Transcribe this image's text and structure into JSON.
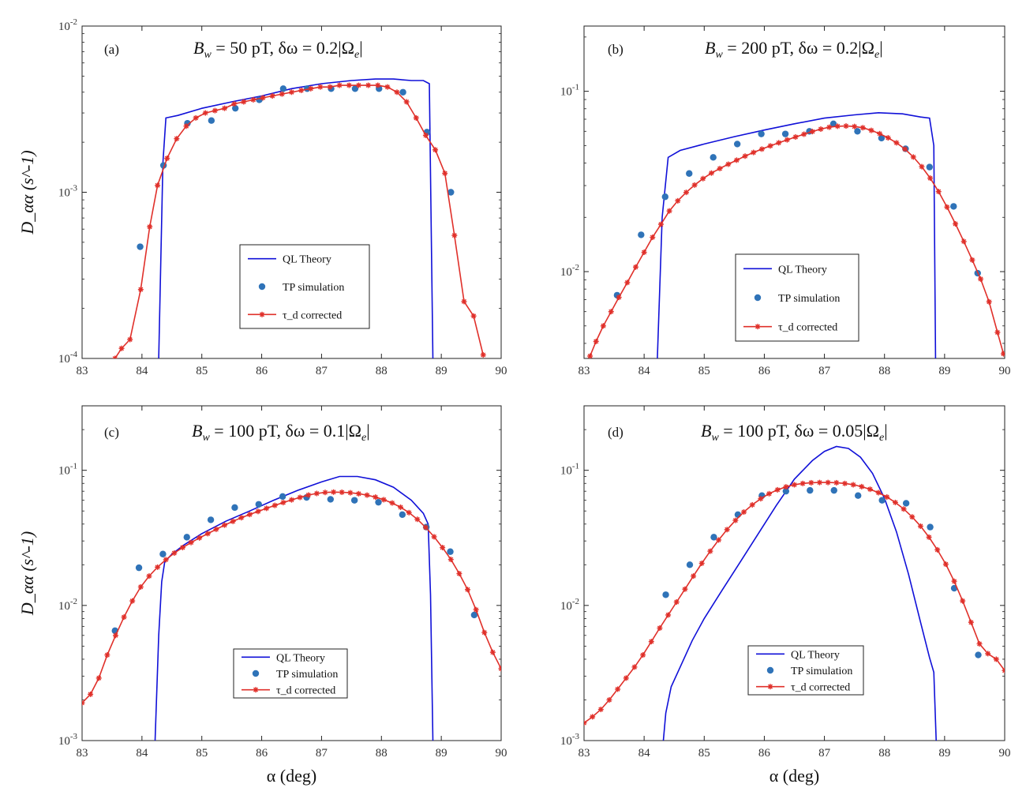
{
  "chart_data": [
    {
      "type": "line",
      "panel": "(a)",
      "title": "B_w = 50 pT, δω = 0.2|Ω_e|",
      "title_parts": {
        "sym": "B",
        "sub": "w",
        "mid": " = 50 pT,  δω = 0.2|Ω",
        "sub2": "e",
        "end": "|"
      },
      "xlabel": "",
      "ylabel": "D_αα (s^-1)",
      "xlim": [
        83,
        90
      ],
      "ylim": [
        0.0001,
        0.01
      ],
      "yscale": "log",
      "xticks": [
        "83",
        "84",
        "85",
        "86",
        "87",
        "88",
        "89",
        "90"
      ],
      "yticks": [
        {
          "base": "10",
          "exp": "-4"
        },
        {
          "base": "10",
          "exp": "-3"
        },
        {
          "base": "10",
          "exp": "-2"
        }
      ],
      "legend_position": "center",
      "series": [
        {
          "name": "QL Theory",
          "style": "line",
          "color": "#1010d8",
          "x": [
            84.28,
            84.35,
            84.4,
            84.6,
            85.0,
            85.5,
            86.0,
            86.5,
            87.0,
            87.5,
            87.9,
            88.2,
            88.5,
            88.7,
            88.8,
            88.86
          ],
          "y": [
            0.0001,
            0.0015,
            0.0028,
            0.0029,
            0.0032,
            0.0035,
            0.0038,
            0.0042,
            0.0045,
            0.0047,
            0.0048,
            0.0048,
            0.0047,
            0.0047,
            0.0045,
            0.0001
          ]
        },
        {
          "name": "TP simulation",
          "style": "dots",
          "color": "#2f73b8",
          "x": [
            83.97,
            84.36,
            84.76,
            85.16,
            85.56,
            85.96,
            86.36,
            86.76,
            87.16,
            87.56,
            87.96,
            88.36,
            88.76,
            89.16
          ],
          "y": [
            0.00047,
            0.00145,
            0.0026,
            0.0027,
            0.0032,
            0.0036,
            0.0042,
            0.0042,
            0.0042,
            0.0042,
            0.0042,
            0.004,
            0.0023,
            0.001
          ]
        },
        {
          "name": "τ_d corrected",
          "style": "line-markers",
          "color": "#e0302a",
          "x": [
            83.55,
            83.66,
            83.8,
            83.98,
            84.13,
            84.26,
            84.42,
            84.58,
            84.74,
            84.9,
            85.06,
            85.22,
            85.38,
            85.54,
            85.7,
            85.86,
            86.02,
            86.18,
            86.34,
            86.5,
            86.66,
            86.82,
            86.98,
            87.14,
            87.3,
            87.46,
            87.62,
            87.78,
            87.94,
            88.1,
            88.26,
            88.42,
            88.58,
            88.74,
            88.9,
            89.06,
            89.22,
            89.38,
            89.54,
            89.7
          ],
          "y": [
            0.0001,
            0.000115,
            0.00013,
            0.00026,
            0.00062,
            0.0011,
            0.0016,
            0.0021,
            0.0025,
            0.0028,
            0.003,
            0.0031,
            0.0032,
            0.0034,
            0.0035,
            0.0036,
            0.0037,
            0.0038,
            0.0039,
            0.004,
            0.0041,
            0.0042,
            0.0043,
            0.0043,
            0.0044,
            0.0044,
            0.0044,
            0.0044,
            0.0044,
            0.0043,
            0.004,
            0.0035,
            0.0028,
            0.0022,
            0.0018,
            0.0013,
            0.00055,
            0.00022,
            0.00018,
            0.000105
          ]
        }
      ]
    },
    {
      "type": "line",
      "panel": "(b)",
      "title": "B_w = 200 pT, δω = 0.2|Ω_e|",
      "title_parts": {
        "sym": "B",
        "sub": "w",
        "mid": " = 200 pT,  δω = 0.2|Ω",
        "sub2": "e",
        "end": "|"
      },
      "xlabel": "",
      "ylabel": "",
      "xlim": [
        83,
        90
      ],
      "ylim": [
        0.0033,
        0.23
      ],
      "yscale": "log",
      "xticks": [
        "83",
        "84",
        "85",
        "86",
        "87",
        "88",
        "89",
        "90"
      ],
      "yticks": [
        {
          "base": "10",
          "exp": "-2"
        },
        {
          "base": "10",
          "exp": "-1"
        }
      ],
      "legend_position": "center-right",
      "series": [
        {
          "name": "QL Theory",
          "style": "line",
          "color": "#1010d8",
          "x": [
            84.22,
            84.3,
            84.4,
            84.6,
            85.0,
            85.5,
            86.0,
            86.5,
            87.0,
            87.5,
            87.9,
            88.3,
            88.6,
            88.75,
            88.82,
            88.85
          ],
          "y": [
            0.0033,
            0.02,
            0.043,
            0.047,
            0.051,
            0.056,
            0.061,
            0.066,
            0.071,
            0.074,
            0.076,
            0.075,
            0.072,
            0.071,
            0.05,
            0.0033
          ]
        },
        {
          "name": "TP simulation",
          "style": "dots",
          "color": "#2f73b8",
          "x": [
            83.55,
            83.95,
            84.35,
            84.75,
            85.15,
            85.55,
            85.95,
            86.35,
            86.75,
            87.15,
            87.55,
            87.95,
            88.35,
            88.75,
            89.15,
            89.55
          ],
          "y": [
            0.0074,
            0.016,
            0.026,
            0.035,
            0.043,
            0.051,
            0.058,
            0.058,
            0.06,
            0.066,
            0.06,
            0.055,
            0.048,
            0.038,
            0.023,
            0.0098
          ]
        },
        {
          "name": "τ_d corrected",
          "style": "line-markers",
          "color": "#e0302a",
          "x": [
            83.1,
            83.2,
            83.32,
            83.45,
            83.58,
            83.72,
            83.86,
            84.0,
            84.14,
            84.28,
            84.42,
            84.56,
            84.7,
            84.84,
            84.98,
            85.12,
            85.26,
            85.4,
            85.54,
            85.68,
            85.82,
            85.96,
            86.1,
            86.24,
            86.38,
            86.52,
            86.66,
            86.8,
            86.94,
            87.08,
            87.22,
            87.36,
            87.5,
            87.64,
            87.78,
            87.92,
            88.06,
            88.2,
            88.34,
            88.48,
            88.62,
            88.76,
            88.9,
            89.04,
            89.18,
            89.32,
            89.46,
            89.6,
            89.74,
            89.88,
            89.98
          ],
          "y": [
            0.0034,
            0.0041,
            0.005,
            0.006,
            0.0072,
            0.0087,
            0.0106,
            0.0128,
            0.0155,
            0.0183,
            0.0217,
            0.0247,
            0.0275,
            0.0302,
            0.0328,
            0.0352,
            0.0373,
            0.0394,
            0.0415,
            0.0437,
            0.0458,
            0.0478,
            0.0498,
            0.0518,
            0.0538,
            0.0558,
            0.0578,
            0.0598,
            0.0617,
            0.0632,
            0.064,
            0.0642,
            0.0638,
            0.0628,
            0.0607,
            0.0582,
            0.0552,
            0.0518,
            0.0478,
            0.0432,
            0.0382,
            0.033,
            0.0278,
            0.0228,
            0.0184,
            0.0147,
            0.0116,
            0.0091,
            0.0068,
            0.0046,
            0.0035
          ]
        }
      ]
    },
    {
      "type": "line",
      "panel": "(c)",
      "title": "B_w = 100 pT, δω = 0.1|Ω_e|",
      "title_parts": {
        "sym": "B",
        "sub": "w",
        "mid": " = 100 pT,  δω = 0.1|Ω",
        "sub2": "e",
        "end": "|"
      },
      "xlabel": "α (deg)",
      "ylabel": "D_αα (s^-1)",
      "xlim": [
        83,
        90
      ],
      "ylim": [
        0.001,
        0.3
      ],
      "yscale": "log",
      "xticks": [
        "83",
        "84",
        "85",
        "86",
        "87",
        "88",
        "89",
        "90"
      ],
      "yticks": [
        {
          "base": "10",
          "exp": "-3"
        },
        {
          "base": "10",
          "exp": "-2"
        },
        {
          "base": "10",
          "exp": "-1"
        }
      ],
      "legend_position": "bottom-center",
      "series": [
        {
          "name": "QL Theory",
          "style": "line",
          "color": "#1010d8",
          "x": [
            84.22,
            84.28,
            84.33,
            84.38,
            84.5,
            84.7,
            85.0,
            85.4,
            85.8,
            86.2,
            86.6,
            87.0,
            87.3,
            87.6,
            87.9,
            88.2,
            88.5,
            88.7,
            88.78,
            88.82,
            88.86
          ],
          "y": [
            0.001,
            0.006,
            0.015,
            0.021,
            0.024,
            0.028,
            0.034,
            0.042,
            0.05,
            0.06,
            0.071,
            0.082,
            0.09,
            0.09,
            0.085,
            0.075,
            0.06,
            0.048,
            0.04,
            0.012,
            0.001
          ]
        },
        {
          "name": "TP simulation",
          "style": "dots",
          "color": "#2f73b8",
          "x": [
            83.55,
            83.95,
            84.35,
            84.75,
            85.15,
            85.55,
            85.95,
            86.35,
            86.75,
            87.15,
            87.55,
            87.95,
            88.35,
            88.75,
            89.15,
            89.55
          ],
          "y": [
            0.0065,
            0.019,
            0.024,
            0.032,
            0.043,
            0.053,
            0.056,
            0.064,
            0.063,
            0.061,
            0.06,
            0.058,
            0.047,
            0.038,
            0.025,
            0.0085
          ]
        },
        {
          "name": "τ_d corrected",
          "style": "line-markers",
          "color": "#e0302a",
          "x": [
            83.0,
            83.14,
            83.28,
            83.42,
            83.56,
            83.7,
            83.84,
            83.98,
            84.12,
            84.26,
            84.4,
            84.54,
            84.68,
            84.82,
            84.96,
            85.1,
            85.24,
            85.38,
            85.52,
            85.66,
            85.8,
            85.94,
            86.08,
            86.22,
            86.36,
            86.5,
            86.64,
            86.78,
            86.92,
            87.06,
            87.2,
            87.34,
            87.48,
            87.62,
            87.76,
            87.9,
            88.04,
            88.18,
            88.32,
            88.46,
            88.6,
            88.74,
            88.88,
            89.02,
            89.16,
            89.3,
            89.44,
            89.58,
            89.72,
            89.86,
            90.0
          ],
          "y": [
            0.0019,
            0.0022,
            0.0029,
            0.0043,
            0.006,
            0.0082,
            0.0108,
            0.0137,
            0.0165,
            0.0192,
            0.0218,
            0.0244,
            0.0268,
            0.0292,
            0.0316,
            0.034,
            0.0366,
            0.0393,
            0.0419,
            0.0446,
            0.0471,
            0.0496,
            0.0523,
            0.055,
            0.0577,
            0.0604,
            0.063,
            0.0656,
            0.0674,
            0.0686,
            0.069,
            0.0688,
            0.0682,
            0.0671,
            0.0655,
            0.0633,
            0.0606,
            0.0573,
            0.0533,
            0.0486,
            0.0434,
            0.0378,
            0.0322,
            0.0268,
            0.0219,
            0.0172,
            0.0131,
            0.0093,
            0.0063,
            0.0045,
            0.0034
          ]
        }
      ]
    },
    {
      "type": "line",
      "panel": "(d)",
      "title": "B_w = 100 pT, δω = 0.05|Ω_e|",
      "title_parts": {
        "sym": "B",
        "sub": "w",
        "mid": " = 100 pT,  δω = 0.05|Ω",
        "sub2": "e",
        "end": "|"
      },
      "xlabel": "α (deg)",
      "ylabel": "",
      "xlim": [
        83,
        90
      ],
      "ylim": [
        0.001,
        0.3
      ],
      "yscale": "log",
      "xticks": [
        "83",
        "84",
        "85",
        "86",
        "87",
        "88",
        "89",
        "90"
      ],
      "yticks": [
        {
          "base": "10",
          "exp": "-3"
        },
        {
          "base": "10",
          "exp": "-2"
        },
        {
          "base": "10",
          "exp": "-1"
        }
      ],
      "legend_position": "bottom-center",
      "series": [
        {
          "name": "QL Theory",
          "style": "line",
          "color": "#1010d8",
          "x": [
            84.32,
            84.36,
            84.45,
            84.6,
            84.8,
            85.0,
            85.3,
            85.6,
            85.9,
            86.2,
            86.5,
            86.8,
            87.0,
            87.2,
            87.4,
            87.6,
            87.8,
            88.0,
            88.2,
            88.4,
            88.6,
            88.75,
            88.82,
            88.86
          ],
          "y": [
            0.001,
            0.0016,
            0.0025,
            0.0035,
            0.0055,
            0.008,
            0.013,
            0.021,
            0.034,
            0.055,
            0.086,
            0.118,
            0.138,
            0.15,
            0.145,
            0.125,
            0.095,
            0.062,
            0.035,
            0.017,
            0.0075,
            0.0041,
            0.0032,
            0.001
          ]
        },
        {
          "name": "TP simulation",
          "style": "dots",
          "color": "#2f73b8",
          "x": [
            84.36,
            84.76,
            85.16,
            85.56,
            85.96,
            86.36,
            86.76,
            87.16,
            87.56,
            87.96,
            88.36,
            88.76,
            89.16,
            89.56
          ],
          "y": [
            0.012,
            0.02,
            0.032,
            0.047,
            0.065,
            0.07,
            0.071,
            0.071,
            0.065,
            0.06,
            0.057,
            0.038,
            0.0134,
            0.0043
          ]
        },
        {
          "name": "τ_d corrected",
          "style": "line-markers",
          "color": "#e0302a",
          "x": [
            83.0,
            83.14,
            83.28,
            83.42,
            83.56,
            83.7,
            83.84,
            83.98,
            84.12,
            84.26,
            84.4,
            84.54,
            84.68,
            84.82,
            84.96,
            85.1,
            85.24,
            85.38,
            85.52,
            85.66,
            85.8,
            85.94,
            86.08,
            86.22,
            86.36,
            86.5,
            86.64,
            86.78,
            86.92,
            87.06,
            87.2,
            87.34,
            87.48,
            87.62,
            87.76,
            87.9,
            88.04,
            88.18,
            88.32,
            88.46,
            88.6,
            88.74,
            88.88,
            89.02,
            89.16,
            89.3,
            89.44,
            89.58,
            89.72,
            89.86,
            90.0
          ],
          "y": [
            0.00135,
            0.0015,
            0.0017,
            0.002,
            0.0024,
            0.0029,
            0.0035,
            0.0043,
            0.0054,
            0.0068,
            0.0085,
            0.0106,
            0.0132,
            0.0165,
            0.0205,
            0.0252,
            0.0305,
            0.0364,
            0.0426,
            0.0491,
            0.0555,
            0.0616,
            0.0671,
            0.0717,
            0.0754,
            0.0782,
            0.0799,
            0.0809,
            0.0812,
            0.0812,
            0.0809,
            0.0799,
            0.0782,
            0.0757,
            0.0724,
            0.0683,
            0.0634,
            0.0578,
            0.0517,
            0.0452,
            0.0386,
            0.032,
            0.0258,
            0.0202,
            0.0151,
            0.0108,
            0.0075,
            0.0052,
            0.0044,
            0.004,
            0.0033
          ]
        }
      ]
    }
  ]
}
